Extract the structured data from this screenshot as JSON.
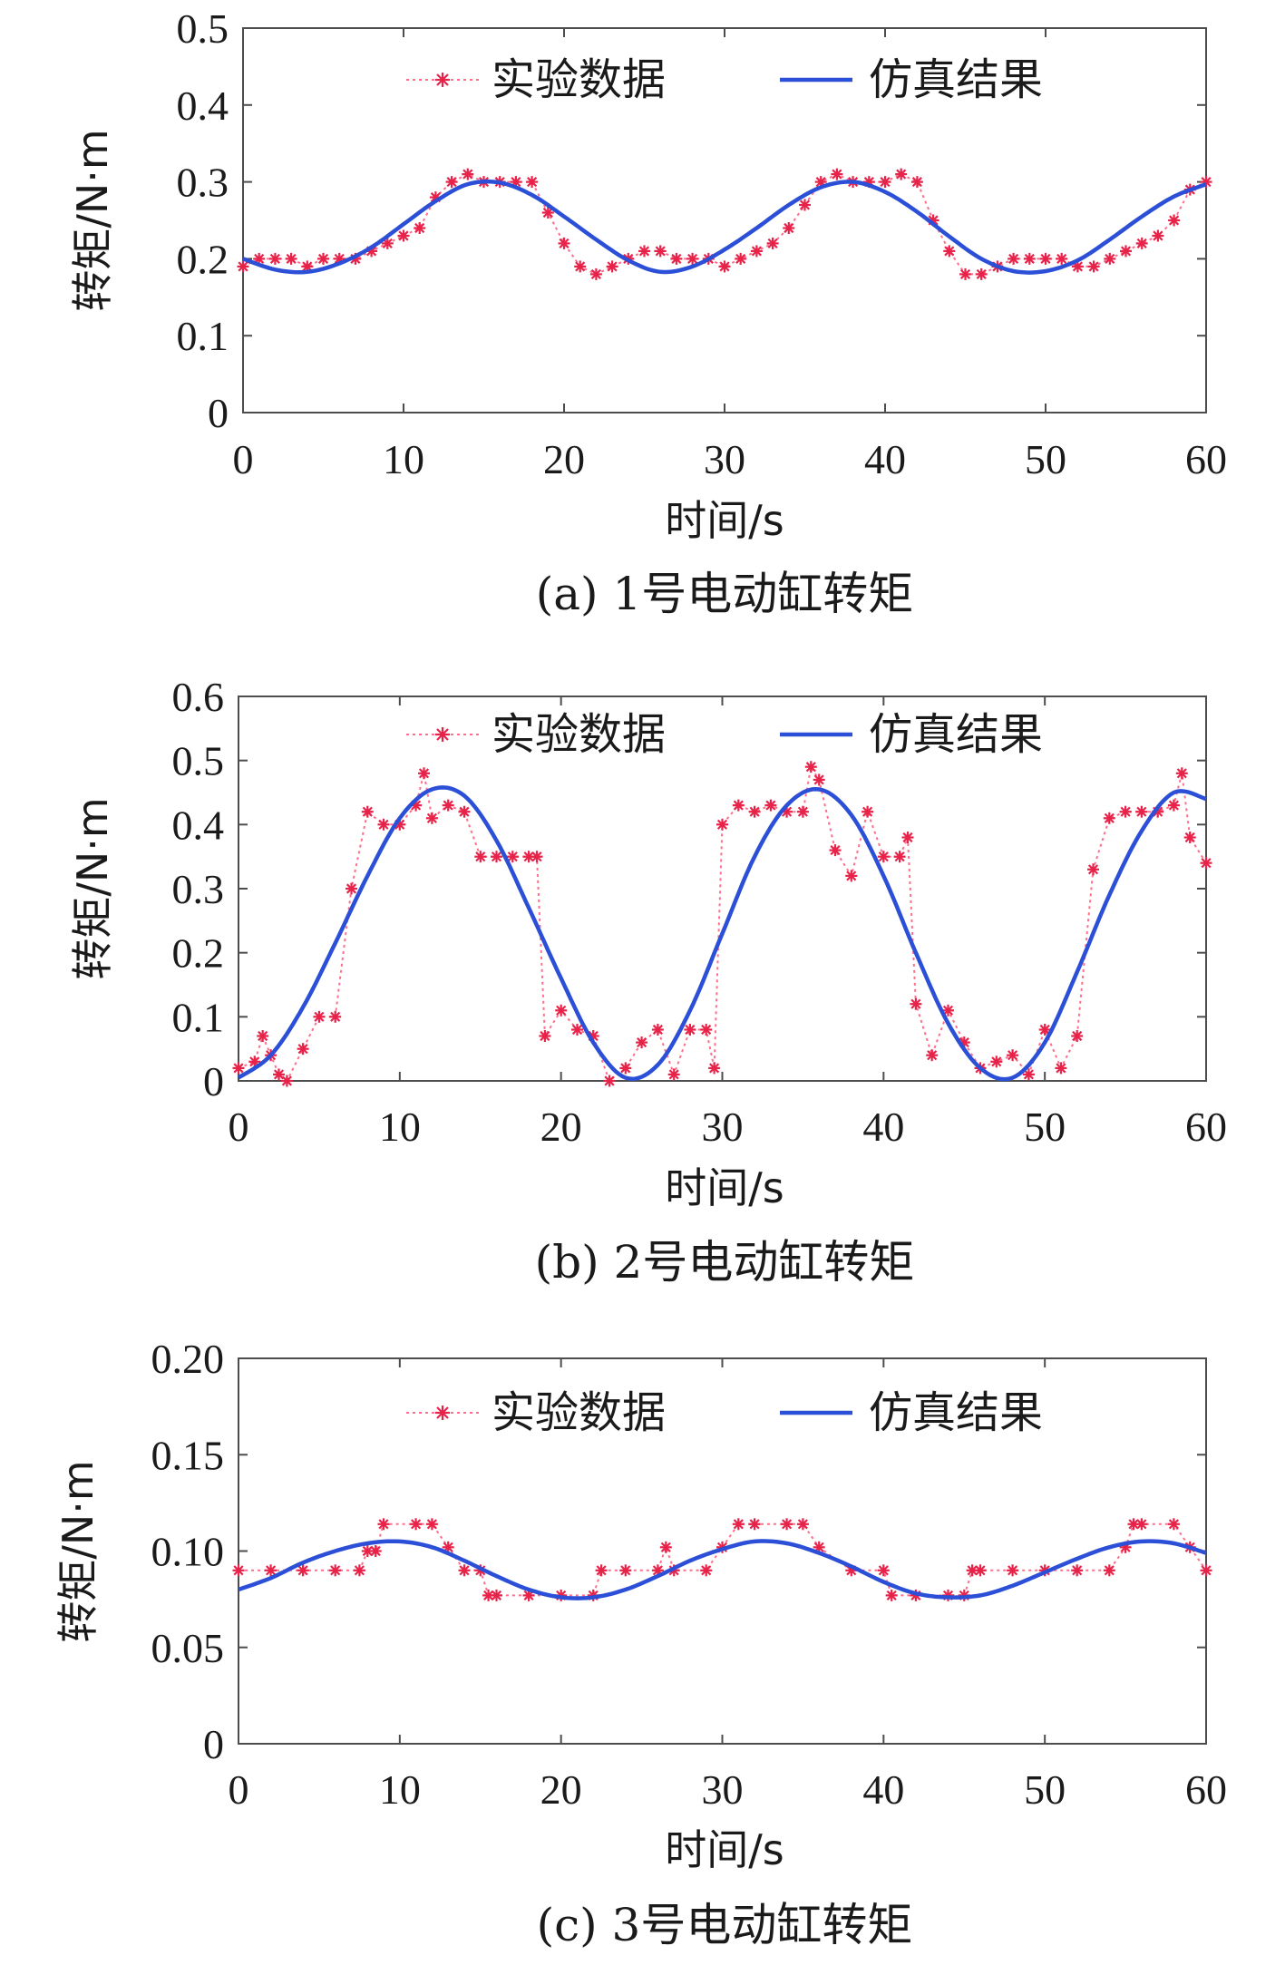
{
  "legend_labels": {
    "experimental": "实验数据",
    "simulation": "仿真结果"
  },
  "colors": {
    "experimental": "#e8234a",
    "experimental_line": "#ff6e8c",
    "simulation": "#2b4fd6",
    "axis": "#4d4d4d"
  },
  "chart_data": [
    {
      "type": "line",
      "caption": "(a) 1号电动缸转矩",
      "xlabel": "时间/s",
      "ylabel": "转矩/N·m",
      "xlim": [
        0,
        60
      ],
      "ylim": [
        0,
        0.5
      ],
      "xticks": [
        0,
        10,
        20,
        30,
        40,
        50,
        60
      ],
      "xtick_labels": [
        "0",
        "10",
        "20",
        "30",
        "40",
        "50",
        "60"
      ],
      "yticks": [
        0,
        0.1,
        0.2,
        0.3,
        0.4,
        0.5
      ],
      "ytick_labels": [
        "0",
        "0.1",
        "0.2",
        "0.3",
        "0.4",
        "0.5"
      ],
      "series": [
        {
          "name": "仿真结果",
          "style": "solid",
          "x": [
            0,
            2,
            4,
            6,
            8,
            10,
            12,
            14,
            16,
            18,
            20,
            22,
            24,
            26,
            28,
            30,
            32,
            34,
            36,
            38,
            40,
            42,
            44,
            46,
            48,
            50,
            52,
            54,
            56,
            58,
            60
          ],
          "y": [
            0.2,
            0.186,
            0.183,
            0.194,
            0.215,
            0.245,
            0.275,
            0.297,
            0.299,
            0.283,
            0.255,
            0.225,
            0.198,
            0.183,
            0.19,
            0.212,
            0.24,
            0.27,
            0.293,
            0.3,
            0.287,
            0.261,
            0.229,
            0.2,
            0.184,
            0.184,
            0.198,
            0.225,
            0.255,
            0.281,
            0.297
          ]
        },
        {
          "name": "实验数据",
          "style": "dotted-markers",
          "x": [
            0,
            1,
            2,
            3,
            4,
            5,
            6,
            7,
            8,
            9,
            10,
            11,
            12,
            13,
            14,
            15,
            16,
            17,
            18,
            19,
            20,
            21,
            22,
            23,
            24,
            25,
            26,
            27,
            28,
            29,
            30,
            31,
            32,
            33,
            34,
            35,
            36,
            37,
            38,
            39,
            40,
            41,
            42,
            43,
            44,
            45,
            46,
            47,
            48,
            49,
            50,
            51,
            52,
            53,
            54,
            55,
            56,
            57,
            58,
            59,
            60
          ],
          "y": [
            0.19,
            0.2,
            0.2,
            0.2,
            0.19,
            0.2,
            0.2,
            0.2,
            0.21,
            0.22,
            0.23,
            0.24,
            0.28,
            0.3,
            0.31,
            0.3,
            0.3,
            0.3,
            0.3,
            0.26,
            0.22,
            0.19,
            0.18,
            0.19,
            0.2,
            0.21,
            0.21,
            0.2,
            0.2,
            0.2,
            0.19,
            0.2,
            0.21,
            0.22,
            0.24,
            0.27,
            0.3,
            0.31,
            0.3,
            0.3,
            0.3,
            0.31,
            0.3,
            0.25,
            0.21,
            0.18,
            0.18,
            0.19,
            0.2,
            0.2,
            0.2,
            0.2,
            0.19,
            0.19,
            0.2,
            0.21,
            0.22,
            0.23,
            0.25,
            0.29,
            0.3
          ]
        }
      ]
    },
    {
      "type": "line",
      "caption": "(b) 2号电动缸转矩",
      "xlabel": "时间/s",
      "ylabel": "转矩/N·m",
      "xlim": [
        0,
        60
      ],
      "ylim": [
        0,
        0.6
      ],
      "xticks": [
        0,
        10,
        20,
        30,
        40,
        50,
        60
      ],
      "xtick_labels": [
        "0",
        "10",
        "20",
        "30",
        "40",
        "50",
        "60"
      ],
      "yticks": [
        0,
        0.1,
        0.2,
        0.3,
        0.4,
        0.5,
        0.6
      ],
      "ytick_labels": [
        "0",
        "0.1",
        "0.2",
        "0.3",
        "0.4",
        "0.5",
        "0.6"
      ],
      "series": [
        {
          "name": "仿真结果",
          "style": "solid",
          "x": [
            0,
            2,
            4,
            6,
            8,
            10,
            12,
            14,
            16,
            18,
            20,
            22,
            24,
            26,
            28,
            30,
            32,
            34,
            36,
            38,
            40,
            42,
            44,
            46,
            48,
            50,
            52,
            54,
            56,
            58,
            60
          ],
          "y": [
            0.005,
            0.04,
            0.115,
            0.215,
            0.32,
            0.41,
            0.455,
            0.445,
            0.375,
            0.27,
            0.16,
            0.06,
            0.005,
            0.025,
            0.11,
            0.23,
            0.35,
            0.43,
            0.455,
            0.415,
            0.32,
            0.2,
            0.09,
            0.02,
            0.005,
            0.06,
            0.17,
            0.29,
            0.39,
            0.45,
            0.44
          ]
        },
        {
          "name": "实验数据",
          "style": "dotted-markers",
          "x": [
            0,
            1,
            1.5,
            2,
            2.5,
            3,
            4,
            5,
            6,
            7,
            8,
            9,
            10,
            11,
            11.5,
            12,
            13,
            14,
            15,
            16,
            17,
            18,
            18.5,
            19,
            20,
            21,
            22,
            23,
            24,
            25,
            26,
            27,
            28,
            29,
            29.5,
            30,
            31,
            32,
            33,
            34,
            35,
            35.5,
            36,
            37,
            38,
            39,
            40,
            41,
            41.5,
            42,
            43,
            44,
            45,
            46,
            47,
            48,
            49,
            50,
            51,
            52,
            53,
            54,
            55,
            56,
            57,
            58,
            58.5,
            59,
            60
          ],
          "y": [
            0.02,
            0.03,
            0.07,
            0.04,
            0.01,
            0.0,
            0.05,
            0.1,
            0.1,
            0.3,
            0.42,
            0.4,
            0.4,
            0.43,
            0.48,
            0.41,
            0.43,
            0.42,
            0.35,
            0.35,
            0.35,
            0.35,
            0.35,
            0.07,
            0.11,
            0.08,
            0.07,
            0.0,
            0.02,
            0.06,
            0.08,
            0.01,
            0.08,
            0.08,
            0.02,
            0.4,
            0.43,
            0.42,
            0.43,
            0.42,
            0.42,
            0.49,
            0.47,
            0.36,
            0.32,
            0.42,
            0.35,
            0.35,
            0.38,
            0.12,
            0.04,
            0.11,
            0.06,
            0.02,
            0.03,
            0.04,
            0.01,
            0.08,
            0.02,
            0.07,
            0.33,
            0.41,
            0.42,
            0.42,
            0.42,
            0.43,
            0.48,
            0.38,
            0.34
          ]
        }
      ]
    },
    {
      "type": "line",
      "caption": "(c) 3号电动缸转矩",
      "xlabel": "时间/s",
      "ylabel": "转矩/N·m",
      "xlim": [
        0,
        60
      ],
      "ylim": [
        0,
        0.2
      ],
      "xticks": [
        0,
        10,
        20,
        30,
        40,
        50,
        60
      ],
      "xtick_labels": [
        "0",
        "10",
        "20",
        "30",
        "40",
        "50",
        "60"
      ],
      "yticks": [
        0,
        0.05,
        0.1,
        0.15,
        0.2
      ],
      "ytick_labels": [
        "0",
        "0.05",
        "0.10",
        "0.15",
        "0.20"
      ],
      "series": [
        {
          "name": "仿真结果",
          "style": "solid",
          "x": [
            0,
            2,
            4,
            6,
            8,
            10,
            12,
            14,
            16,
            18,
            20,
            22,
            24,
            26,
            28,
            30,
            32,
            34,
            36,
            38,
            40,
            42,
            44,
            46,
            48,
            50,
            52,
            54,
            56,
            58,
            60
          ],
          "y": [
            0.08,
            0.086,
            0.094,
            0.1,
            0.104,
            0.105,
            0.102,
            0.095,
            0.087,
            0.08,
            0.076,
            0.076,
            0.08,
            0.087,
            0.095,
            0.101,
            0.105,
            0.104,
            0.099,
            0.092,
            0.084,
            0.078,
            0.076,
            0.077,
            0.082,
            0.089,
            0.096,
            0.102,
            0.105,
            0.104,
            0.099
          ]
        },
        {
          "name": "实验数据",
          "style": "dotted-markers",
          "x": [
            0,
            2,
            4,
            6,
            7.5,
            8,
            8.5,
            9,
            11,
            12,
            13,
            14,
            15,
            15.5,
            16,
            18,
            20,
            22,
            22.5,
            24,
            26,
            26.5,
            27,
            29,
            30,
            31,
            32,
            34,
            35,
            36,
            38,
            40,
            40.5,
            42,
            44,
            45,
            45.5,
            46,
            48,
            50,
            52,
            54,
            55,
            55.5,
            56,
            58,
            59,
            60
          ],
          "y": [
            0.09,
            0.09,
            0.09,
            0.09,
            0.09,
            0.1,
            0.1,
            0.114,
            0.114,
            0.114,
            0.102,
            0.09,
            0.09,
            0.077,
            0.077,
            0.077,
            0.077,
            0.077,
            0.09,
            0.09,
            0.09,
            0.102,
            0.09,
            0.09,
            0.102,
            0.114,
            0.114,
            0.114,
            0.114,
            0.102,
            0.09,
            0.09,
            0.077,
            0.077,
            0.077,
            0.077,
            0.09,
            0.09,
            0.09,
            0.09,
            0.09,
            0.09,
            0.102,
            0.114,
            0.114,
            0.114,
            0.102,
            0.09
          ]
        }
      ]
    }
  ]
}
